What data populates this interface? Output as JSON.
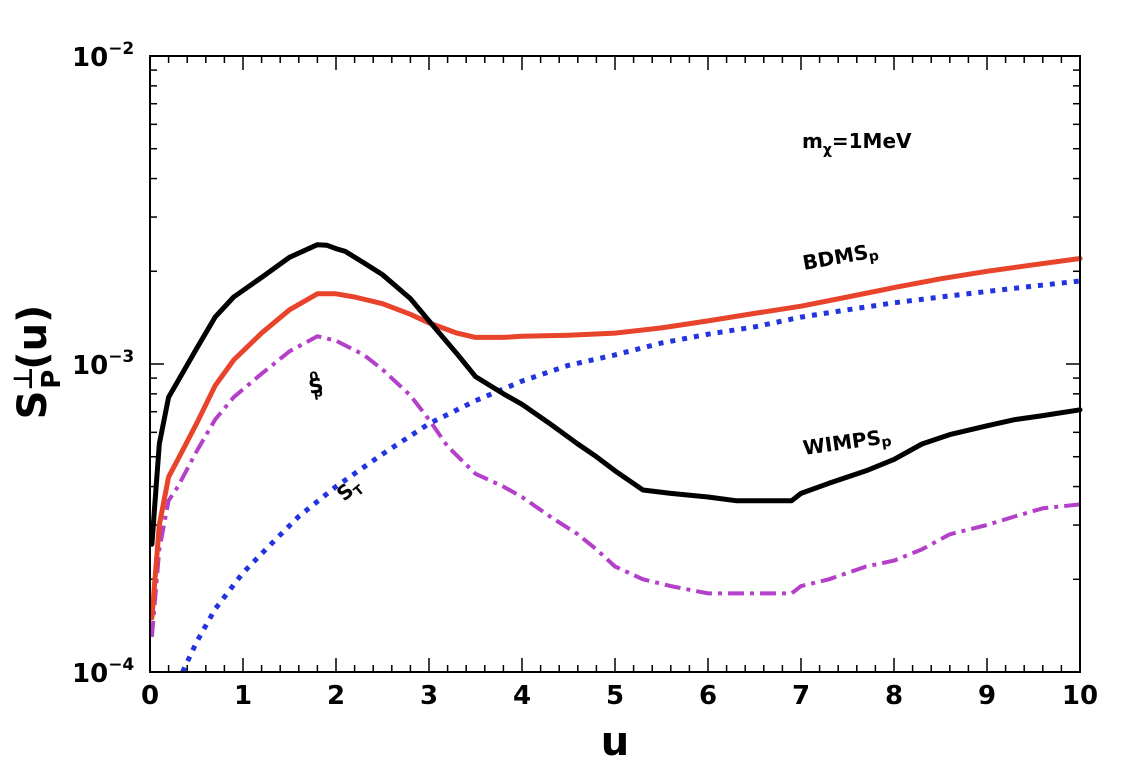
{
  "chart_data": {
    "type": "line",
    "title": "",
    "xlabel": "u",
    "ylabel": {
      "base": "S",
      "sub": "P",
      "sup": "⊥",
      "arg": "(u)"
    },
    "xlim": [
      0,
      10
    ],
    "ylim": [
      0.0001,
      0.01
    ],
    "yscale": "log",
    "xticks": [
      "0",
      "1",
      "2",
      "3",
      "4",
      "5",
      "6",
      "7",
      "8",
      "9",
      "10"
    ],
    "yticks": [
      {
        "value": 0.0001,
        "base": "10",
        "exp": "−4"
      },
      {
        "value": 0.001,
        "base": "10",
        "exp": "−3"
      },
      {
        "value": 0.01,
        "base": "10",
        "exp": "−2"
      }
    ],
    "grid": false,
    "annotation": {
      "main": "m",
      "sub": "χ",
      "rest": "=1MeV"
    },
    "series": [
      {
        "name": "WIMPS_p",
        "label_main": "WIMPS",
        "label_sub": "p",
        "color": "#000000",
        "style": "solid",
        "x": [
          0.02,
          0.1,
          0.2,
          0.3,
          0.5,
          0.7,
          0.9,
          1.2,
          1.5,
          1.8,
          1.9,
          2.0,
          2.1,
          2.3,
          2.5,
          2.8,
          3.0,
          3.3,
          3.5,
          3.8,
          4.0,
          4.3,
          4.6,
          4.8,
          5.0,
          5.3,
          5.6,
          6.0,
          6.3,
          6.6,
          6.9,
          7.0,
          7.3,
          7.7,
          8.0,
          8.3,
          8.6,
          9.0,
          9.3,
          9.6,
          10.0
        ],
        "y": [
          0.00026,
          0.00055,
          0.00078,
          0.00088,
          0.00112,
          0.00142,
          0.00165,
          0.00191,
          0.00222,
          0.00244,
          0.00243,
          0.00237,
          0.00232,
          0.00213,
          0.00195,
          0.00163,
          0.00138,
          0.00108,
          0.00091,
          0.0008,
          0.00074,
          0.00064,
          0.00055,
          0.0005,
          0.00045,
          0.00039,
          0.00038,
          0.00037,
          0.00036,
          0.00036,
          0.00036,
          0.00038,
          0.00041,
          0.00045,
          0.00049,
          0.00055,
          0.00059,
          0.00063,
          0.00066,
          0.00068,
          0.00071
        ]
      },
      {
        "name": "BDMS_p",
        "label_main": "BDMS",
        "label_sub": "p",
        "color": "#e8432b",
        "style": "solid",
        "x": [
          0.02,
          0.1,
          0.2,
          0.3,
          0.5,
          0.7,
          0.9,
          1.2,
          1.5,
          1.8,
          2.0,
          2.2,
          2.5,
          2.8,
          3.0,
          3.3,
          3.5,
          3.8,
          4.0,
          4.5,
          5.0,
          5.5,
          6.0,
          6.5,
          7.0,
          7.5,
          8.0,
          8.5,
          9.0,
          9.5,
          10.0
        ],
        "y": [
          0.00015,
          0.0003,
          0.00043,
          0.00049,
          0.00064,
          0.00085,
          0.00103,
          0.00126,
          0.0015,
          0.00169,
          0.00169,
          0.00165,
          0.00157,
          0.00145,
          0.00136,
          0.00126,
          0.00122,
          0.00122,
          0.00123,
          0.00124,
          0.00126,
          0.00131,
          0.00138,
          0.00146,
          0.00154,
          0.00165,
          0.00177,
          0.00189,
          0.002,
          0.0021,
          0.0022
        ]
      },
      {
        "name": "S_p^0",
        "label_main": "S",
        "label_sub": "p",
        "label_sup": "0",
        "color": "#b43fc8",
        "style": "dashdot",
        "x": [
          0.02,
          0.1,
          0.2,
          0.3,
          0.5,
          0.7,
          0.9,
          1.2,
          1.5,
          1.8,
          2.0,
          2.3,
          2.5,
          2.8,
          3.0,
          3.2,
          3.5,
          3.8,
          4.0,
          4.3,
          4.6,
          4.8,
          5.0,
          5.3,
          5.6,
          6.0,
          6.3,
          6.6,
          6.9,
          7.0,
          7.3,
          7.7,
          8.0,
          8.3,
          8.6,
          9.0,
          9.3,
          9.6,
          10.0
        ],
        "y": [
          0.00013,
          0.00025,
          0.00036,
          0.0004,
          0.00052,
          0.00066,
          0.00078,
          0.00093,
          0.0011,
          0.00123,
          0.00119,
          0.00107,
          0.00096,
          0.00079,
          0.00066,
          0.00054,
          0.00044,
          0.0004,
          0.00037,
          0.00032,
          0.00028,
          0.00025,
          0.00022,
          0.0002,
          0.00019,
          0.00018,
          0.00018,
          0.00018,
          0.00018,
          0.00019,
          0.0002,
          0.00022,
          0.00023,
          0.00025,
          0.00028,
          0.0003,
          0.00032,
          0.00034,
          0.00035
        ]
      },
      {
        "name": "S_T",
        "label_main": "S",
        "label_sub": "T",
        "color": "#2233e0",
        "style": "dotted",
        "x": [
          0.35,
          0.5,
          0.7,
          1.0,
          1.3,
          1.6,
          2.0,
          2.5,
          3.0,
          3.5,
          4.0,
          4.5,
          5.0,
          5.5,
          6.0,
          6.5,
          7.0,
          7.5,
          8.0,
          8.5,
          9.0,
          9.5,
          10.0
        ],
        "y": [
          0.0001,
          0.000125,
          0.00016,
          0.00021,
          0.00026,
          0.00032,
          0.0004,
          0.00051,
          0.00064,
          0.00076,
          0.00088,
          0.00099,
          0.00107,
          0.00117,
          0.00125,
          0.00132,
          0.00142,
          0.0015,
          0.00158,
          0.00165,
          0.00172,
          0.00179,
          0.00186
        ]
      }
    ]
  }
}
